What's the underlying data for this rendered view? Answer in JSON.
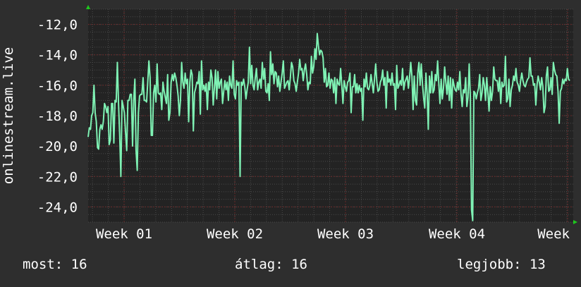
{
  "chart_data": {
    "type": "line",
    "ylabel": "onlinestream.live",
    "xlabel": "",
    "title": "",
    "ylim": [
      -25.0,
      -11.0
    ],
    "y_ticks": [
      "-12,0",
      "-14,0",
      "-16,0",
      "-18,0",
      "-20,0",
      "-22,0",
      "-24,0"
    ],
    "y_tick_values": [
      -12,
      -14,
      -16,
      -18,
      -20,
      -22,
      -24
    ],
    "x_ticks": [
      "Week 01",
      "Week 02",
      "Week 03",
      "Week 04",
      "Week"
    ],
    "grid": true,
    "colors": {
      "line": "#7ff2b4",
      "background": "#2e2e2e",
      "plot": "#232323",
      "grid_major": "#6a2a2a",
      "grid_minor": "#4a4a4a",
      "axis_arrow": "#1ec81e"
    },
    "series": [
      {
        "values": [
          -19.4,
          -18.8,
          -18.9,
          -18.0,
          -17.8,
          -16.0,
          -17.8,
          -18.4,
          -20.1,
          -20.2,
          -18.9,
          -18.6,
          -18.9,
          -18.4,
          -17.2,
          -17.4,
          -17.8,
          -17.4,
          -19.9,
          -19.6,
          -17.2,
          -17.2,
          -19.8,
          -17.0,
          -17.1,
          -14.5,
          -17.2,
          -19.3,
          -22.0,
          -17.0,
          -17.4,
          -17.8,
          -19.1,
          -20.3,
          -17.0,
          -17.0,
          -16.6,
          -16.6,
          -20.0,
          -17.0,
          -15.6,
          -20.3,
          -21.6,
          -17.8,
          -16.7,
          -16.6,
          -16.6,
          -15.5,
          -17.0,
          -17.0,
          -17.1,
          -15.8,
          -14.4,
          -15.5,
          -19.3,
          -19.3,
          -16.5,
          -16.0,
          -17.1,
          -14.6,
          -16.5,
          -16.6,
          -16.5,
          -17.6,
          -15.8,
          -16.4,
          -16.8,
          -17.2,
          -15.3,
          -18.3,
          -17.8,
          -15.8,
          -15.3,
          -15.7,
          -15.2,
          -15.5,
          -16.0,
          -16.7,
          -18.0,
          -17.0,
          -14.5,
          -15.8,
          -16.2,
          -15.2,
          -15.9,
          -15.6,
          -18.4,
          -15.8,
          -15.0,
          -15.3,
          -19.0,
          -16.5,
          -16.2,
          -15.8,
          -15.9,
          -15.1,
          -17.9,
          -14.4,
          -16.3,
          -16.0,
          -16.4,
          -15.9,
          -17.6,
          -15.8,
          -16.3,
          -15.0,
          -15.5,
          -17.3,
          -16.2,
          -15.0,
          -16.9,
          -15.1,
          -16.2,
          -15.8,
          -15.6,
          -17.2,
          -16.4,
          -15.7,
          -16.3,
          -15.8,
          -17.0,
          -15.4,
          -16.0,
          -16.2,
          -14.4,
          -16.6,
          -16.9,
          -15.7,
          -16.0,
          -15.8,
          -22.0,
          -15.8,
          -16.0,
          -15.6,
          -16.1,
          -16.9,
          -16.3,
          -15.8,
          -13.5,
          -15.9,
          -14.7,
          -16.0,
          -16.3,
          -15.5,
          -14.9,
          -16.3,
          -15.8,
          -15.6,
          -16.2,
          -14.5,
          -15.6,
          -14.9,
          -16.4,
          -16.5,
          -15.9,
          -17.0,
          -13.8,
          -15.3,
          -14.6,
          -15.9,
          -15.1,
          -15.2,
          -16.1,
          -15.4,
          -16.4,
          -15.8,
          -15.2,
          -14.4,
          -16.2,
          -16.0,
          -15.8,
          -15.7,
          -16.3,
          -15.5,
          -14.5,
          -14.8,
          -15.7,
          -15.9,
          -16.4,
          -15.8,
          -15.2,
          -14.3,
          -15.0,
          -14.9,
          -15.7,
          -15.0,
          -14.6,
          -15.3,
          -16.3,
          -15.8,
          -15.9,
          -14.1,
          -15.2,
          -14.8,
          -13.6,
          -14.3,
          -12.6,
          -13.4,
          -14.0,
          -13.7,
          -13.8,
          -14.2,
          -15.8,
          -14.9,
          -16.1,
          -16.0,
          -15.2,
          -16.2,
          -15.6,
          -15.7,
          -16.5,
          -15.5,
          -17.2,
          -15.6,
          -15.9,
          -16.0,
          -14.9,
          -16.0,
          -17.2,
          -15.7,
          -16.1,
          -16.4,
          -15.8,
          -15.7,
          -15.2,
          -17.8,
          -16.1,
          -16.1,
          -15.3,
          -16.5,
          -15.9,
          -16.5,
          -16.0,
          -16.4,
          -16.2,
          -18.3,
          -15.6,
          -16.1,
          -15.2,
          -16.2,
          -16.3,
          -16.0,
          -15.3,
          -15.9,
          -16.5,
          -15.6,
          -14.6,
          -15.8,
          -16.4,
          -16.3,
          -15.8,
          -15.6,
          -15.0,
          -16.0,
          -15.5,
          -17.5,
          -15.1,
          -15.8,
          -15.6,
          -16.0,
          -15.2,
          -16.0,
          -15.9,
          -17.6,
          -14.7,
          -16.2,
          -16.0,
          -15.7,
          -16.0,
          -14.9,
          -16.3,
          -15.8,
          -15.6,
          -15.4,
          -16.2,
          -15.5,
          -14.5,
          -15.4,
          -17.6,
          -15.4,
          -17.0,
          -17.3,
          -15.2,
          -14.5,
          -16.0,
          -14.6,
          -15.9,
          -16.8,
          -17.5,
          -15.2,
          -16.5,
          -18.9,
          -15.4,
          -16.5,
          -15.1,
          -16.5,
          -16.3,
          -15.3,
          -15.7,
          -14.4,
          -15.9,
          -17.2,
          -15.6,
          -16.9,
          -16.2,
          -14.8,
          -15.8,
          -16.6,
          -15.4,
          -17.0,
          -15.5,
          -17.5,
          -15.6,
          -16.0,
          -16.3,
          -16.4,
          -15.8,
          -16.3,
          -15.1,
          -16.6,
          -17.4,
          -16.3,
          -16.5,
          -15.5,
          -17.4,
          -16.8,
          -14.6,
          -16.8,
          -24.2,
          -24.9,
          -16.4,
          -16.5,
          -16.9,
          -16.5,
          -16.2,
          -15.3,
          -17.0,
          -16.5,
          -15.5,
          -16.0,
          -17.0,
          -15.5,
          -16.5,
          -17.7,
          -16.1,
          -17.0,
          -16.4,
          -14.8,
          -15.6,
          -15.7,
          -15.7,
          -16.4,
          -15.5,
          -17.2,
          -15.8,
          -16.1,
          -16.0,
          -14.1,
          -17.1,
          -16.9,
          -15.6,
          -17.4,
          -16.3,
          -16.0,
          -15.4,
          -15.7,
          -14.9,
          -15.8,
          -16.0,
          -16.4,
          -15.7,
          -15.2,
          -15.7,
          -16.0,
          -16.1,
          -15.8,
          -15.6,
          -15.5,
          -14.2,
          -15.4,
          -15.4,
          -16.0,
          -15.9,
          -17.3,
          -16.0,
          -15.4,
          -15.8,
          -16.3,
          -15.5,
          -16.1,
          -17.8,
          -17.4,
          -15.4,
          -14.8,
          -16.4,
          -16.3,
          -15.5,
          -16.6,
          -14.5,
          -15.0,
          -15.3,
          -15.4,
          -16.4,
          -18.5,
          -16.4,
          -16.2,
          -15.6,
          -15.9,
          -15.6,
          -15.7,
          -14.9,
          -15.6,
          -15.7
        ]
      }
    ]
  },
  "stats": {
    "current_label": "most: 16",
    "average_label": "átlag: 16",
    "max_label": "legjobb: 13"
  }
}
